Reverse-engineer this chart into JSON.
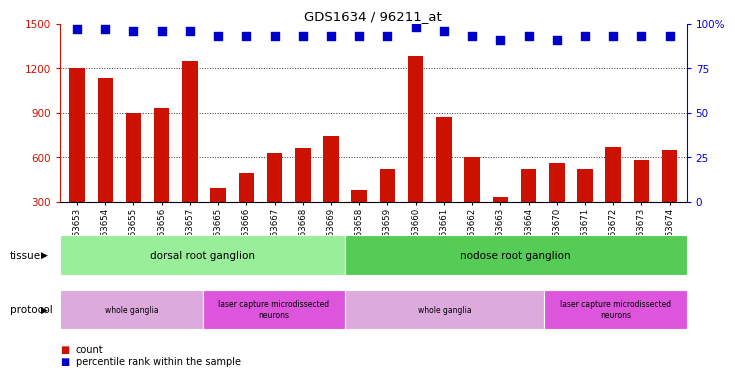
{
  "title": "GDS1634 / 96211_at",
  "samples": [
    "GSM63653",
    "GSM63654",
    "GSM63655",
    "GSM63656",
    "GSM63657",
    "GSM63665",
    "GSM63666",
    "GSM63667",
    "GSM63668",
    "GSM63669",
    "GSM63658",
    "GSM63659",
    "GSM63660",
    "GSM63661",
    "GSM63662",
    "GSM63663",
    "GSM63664",
    "GSM63670",
    "GSM63671",
    "GSM63672",
    "GSM63673",
    "GSM63674"
  ],
  "counts": [
    1200,
    1130,
    900,
    930,
    1250,
    390,
    490,
    630,
    660,
    740,
    380,
    520,
    1280,
    870,
    600,
    330,
    520,
    560,
    520,
    670,
    580,
    650
  ],
  "percentiles": [
    97,
    97,
    96,
    96,
    96,
    93,
    93,
    93,
    93,
    93,
    93,
    93,
    98,
    96,
    93,
    91,
    93,
    91,
    93,
    93,
    93,
    93
  ],
  "left_ylim": [
    300,
    1500
  ],
  "left_yticks": [
    300,
    600,
    900,
    1200,
    1500
  ],
  "right_ylim": [
    0,
    100
  ],
  "right_yticks": [
    0,
    25,
    50,
    75,
    100
  ],
  "bar_color": "#cc1100",
  "dot_color": "#0000cc",
  "tissue_labels": [
    {
      "label": "dorsal root ganglion",
      "start": 0,
      "end": 10,
      "color": "#99ee99"
    },
    {
      "label": "nodose root ganglion",
      "start": 10,
      "end": 22,
      "color": "#55cc55"
    }
  ],
  "protocol_labels": [
    {
      "label": "whole ganglia",
      "start": 0,
      "end": 5,
      "color": "#ddaadd"
    },
    {
      "label": "laser capture microdissected\nneurons",
      "start": 5,
      "end": 10,
      "color": "#dd55dd"
    },
    {
      "label": "whole ganglia",
      "start": 10,
      "end": 17,
      "color": "#ddaadd"
    },
    {
      "label": "laser capture microdissected\nneurons",
      "start": 17,
      "end": 22,
      "color": "#dd55dd"
    }
  ],
  "legend_count_label": "count",
  "legend_pct_label": "percentile rank within the sample",
  "grid_lines": [
    600,
    900,
    1200
  ],
  "bar_bottom": 300
}
